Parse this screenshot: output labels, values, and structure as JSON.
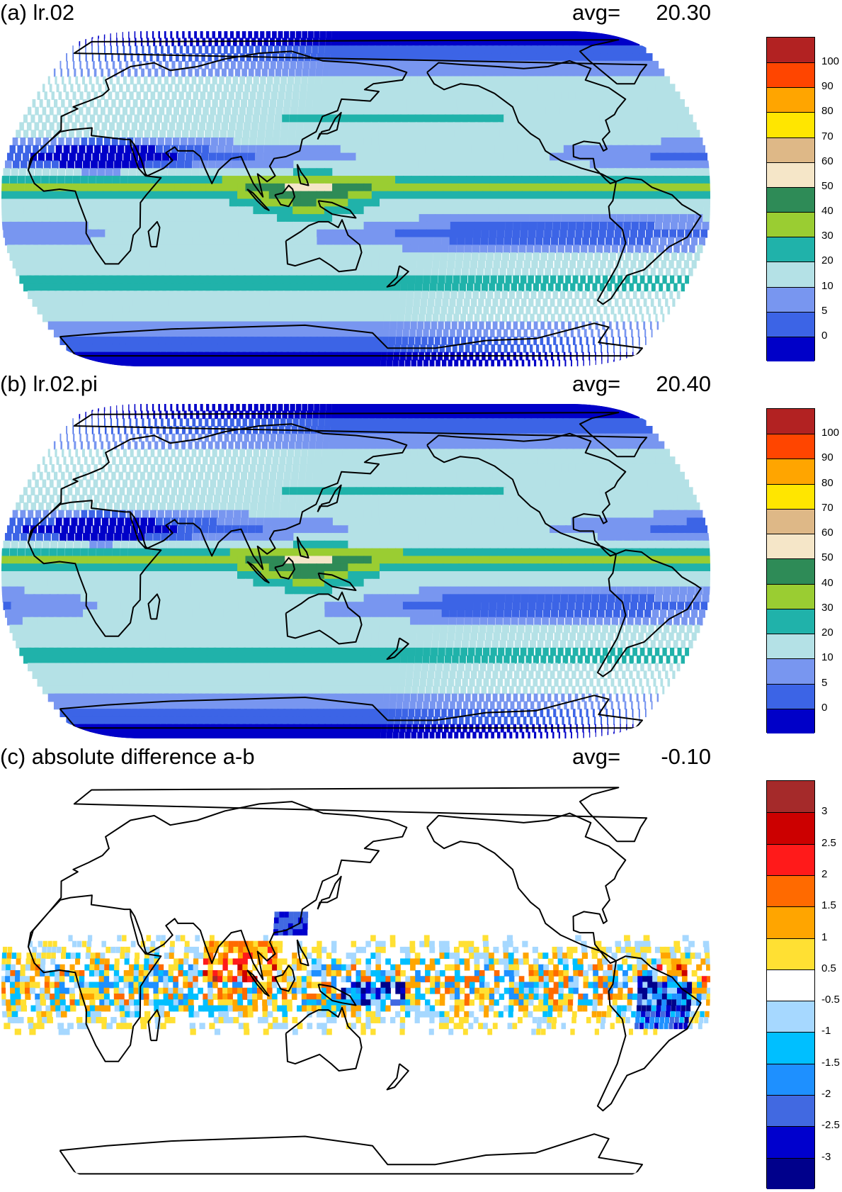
{
  "panels": [
    {
      "id": "a",
      "title": "(a) lr.02",
      "avg_label": "avg=",
      "avg_value": "20.30",
      "colorbar": {
        "colors": [
          "#0000c8",
          "#3c64e6",
          "#7896f0",
          "#b4e1e6",
          "#20b2aa",
          "#9acd32",
          "#2e8b57",
          "#f5e6c8",
          "#deb887",
          "#ffe600",
          "#ffa500",
          "#ff4500",
          "#b22222"
        ],
        "tick_labels": [
          "0",
          "5",
          "10",
          "20",
          "30",
          "40",
          "50",
          "60",
          "70",
          "80",
          "90",
          "100"
        ]
      }
    },
    {
      "id": "b",
      "title": "(b) lr.02.pi",
      "avg_label": "avg=",
      "avg_value": "20.40",
      "colorbar": {
        "colors": [
          "#0000c8",
          "#3c64e6",
          "#7896f0",
          "#b4e1e6",
          "#20b2aa",
          "#9acd32",
          "#2e8b57",
          "#f5e6c8",
          "#deb887",
          "#ffe600",
          "#ffa500",
          "#ff4500",
          "#b22222"
        ],
        "tick_labels": [
          "0",
          "5",
          "10",
          "20",
          "30",
          "40",
          "50",
          "60",
          "70",
          "80",
          "90",
          "100"
        ]
      }
    },
    {
      "id": "c",
      "title": "(c) absolute difference a-b",
      "avg_label": "avg=",
      "avg_value": "-0.10",
      "colorbar": {
        "colors": [
          "#00008b",
          "#0000cd",
          "#4169e1",
          "#1e90ff",
          "#00bfff",
          "#a6d8ff",
          "#ffffff",
          "#ffe033",
          "#ffa500",
          "#ff6a00",
          "#ff1a1a",
          "#cc0000",
          "#a52a2a"
        ],
        "tick_labels": [
          "-3",
          "-2.5",
          "-2",
          "-1.5",
          "-1",
          "-0.5",
          "0.5",
          "1",
          "1.5",
          "2",
          "2.5",
          "3"
        ]
      }
    }
  ]
}
